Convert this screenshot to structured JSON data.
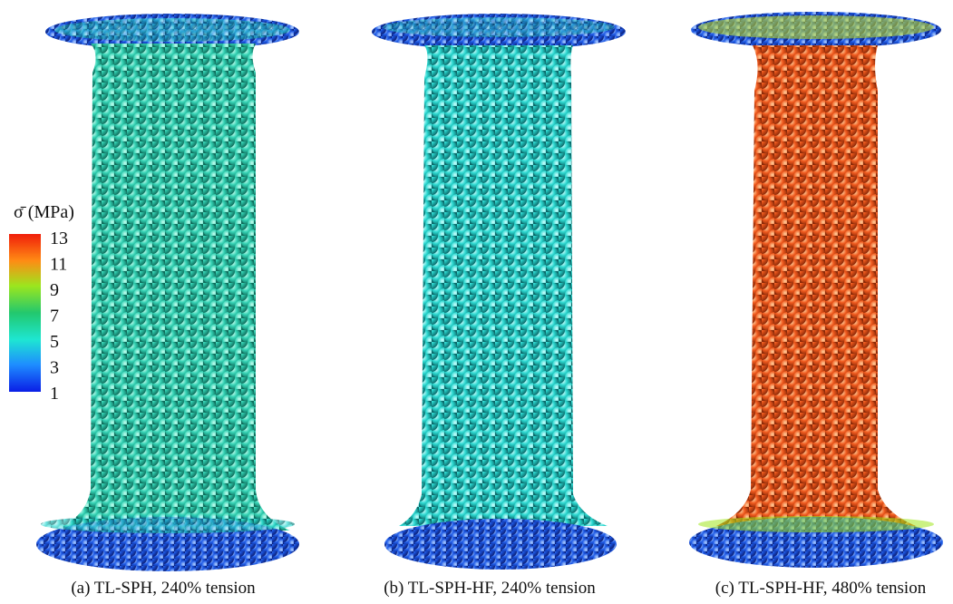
{
  "colorbar": {
    "label": "σ̄ (MPa)",
    "ticks": [
      13,
      11,
      9,
      7,
      5,
      3,
      1
    ]
  },
  "captions": [
    "(a) TL-SPH, 240% tension",
    "(b) TL-SPH-HF, 240% tension",
    "(c) TL-SPH-HF, 480% tension"
  ]
}
